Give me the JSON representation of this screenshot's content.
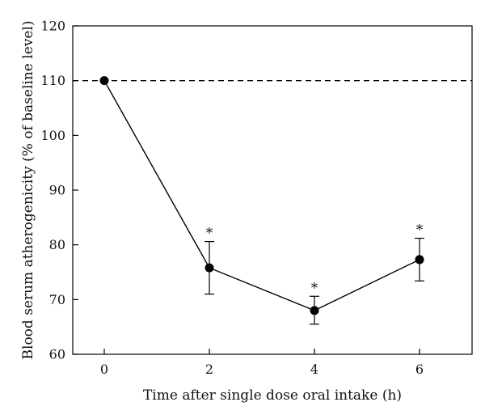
{
  "chart_data": {
    "type": "line",
    "xlabel": "Time after single dose oral intake (h)",
    "ylabel": "Blood serum atherogenicity (% of baseline level)",
    "xlim": [
      -0.6,
      7.0
    ],
    "ylim": [
      60,
      120
    ],
    "x_ticks": [
      0,
      2,
      4,
      6
    ],
    "y_ticks": [
      60,
      70,
      80,
      90,
      100,
      110,
      120
    ],
    "grid": false,
    "legend": "none",
    "baseline": {
      "y": 110,
      "style": "dashed"
    },
    "series": [
      {
        "x": [
          0,
          2,
          4,
          6
        ],
        "values": [
          110.0,
          75.8,
          68.0,
          77.3
        ],
        "error_upper": [
          110.0,
          80.6,
          70.6,
          81.2
        ],
        "error_lower": [
          110.0,
          71.0,
          65.5,
          73.4
        ],
        "significance": [
          "",
          "*",
          "*",
          "*"
        ]
      }
    ],
    "colors": {
      "line": "#000000",
      "marker": "#000000",
      "baseline": "#000000"
    }
  }
}
